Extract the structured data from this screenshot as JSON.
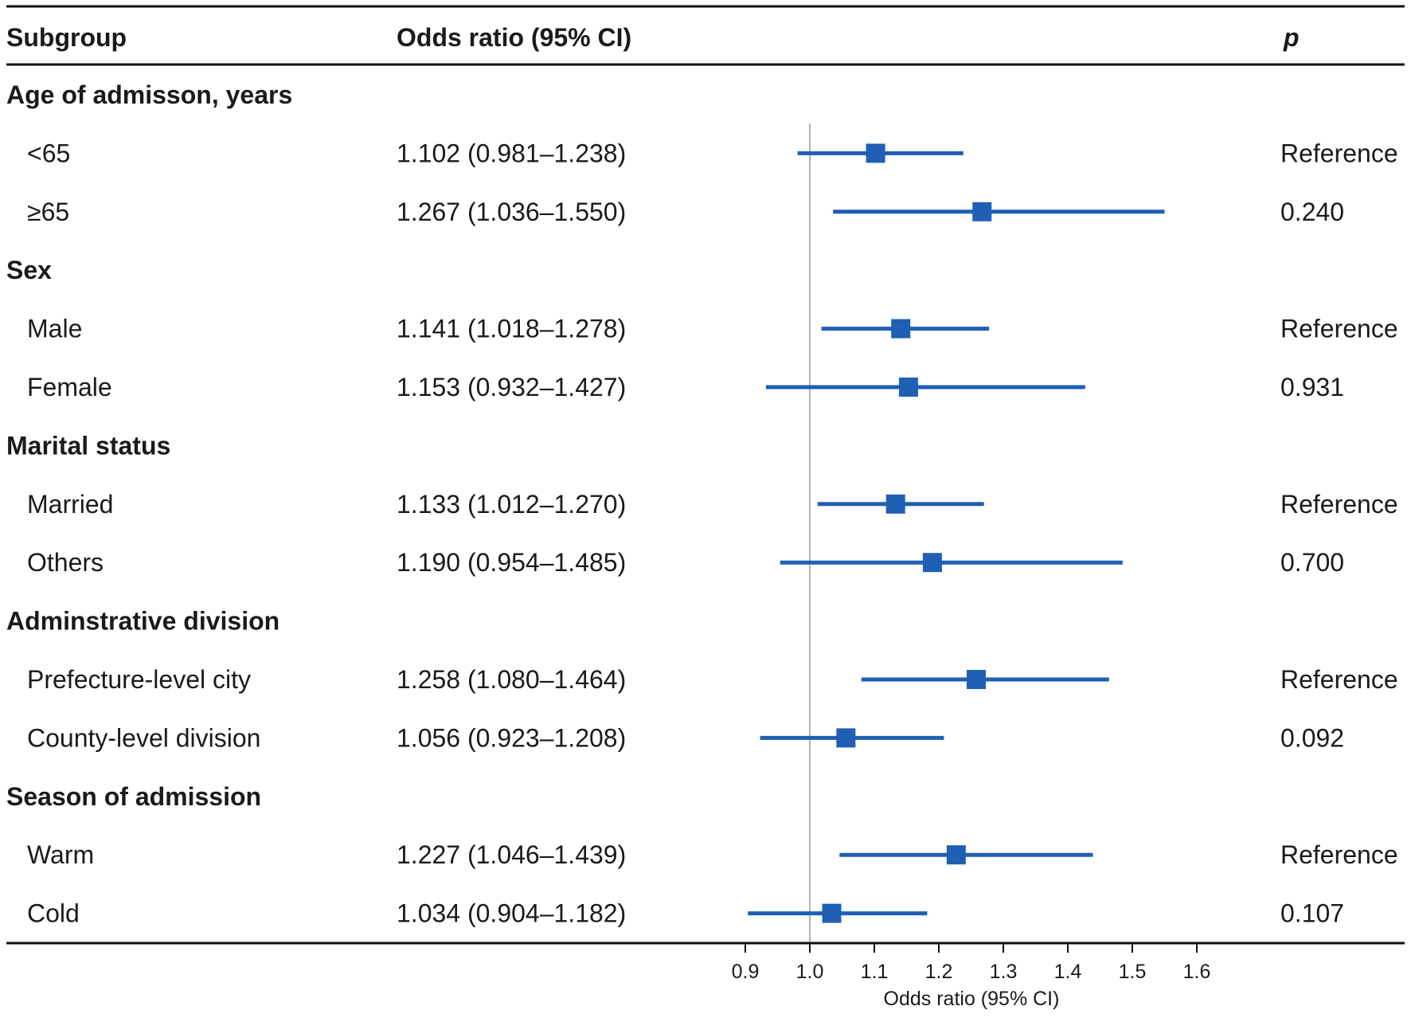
{
  "chart_data": {
    "type": "forest",
    "title": "",
    "columns": {
      "subgroup": "Subgroup",
      "estimate": "Odds ratio (95% CI)",
      "p": "p"
    },
    "xlabel": "Odds ratio (95% CI)",
    "xlim": [
      0.9,
      1.6
    ],
    "xticks": [
      "0.9",
      "1.0",
      "1.1",
      "1.2",
      "1.3",
      "1.4",
      "1.5",
      "1.6"
    ],
    "reference_line": 1.0,
    "colors": {
      "marker": "#1f5fb4",
      "rule": "#111111",
      "refline": "#999999"
    },
    "groups": [
      {
        "label": "Age of admisson, years",
        "rows": [
          {
            "label": "<65",
            "or": 1.102,
            "lo": 0.981,
            "hi": 1.238,
            "text": "1.102 (0.981–1.238)",
            "p": "Reference"
          },
          {
            "label": "≥65",
            "or": 1.267,
            "lo": 1.036,
            "hi": 1.55,
            "text": "1.267 (1.036–1.550)",
            "p": "0.240"
          }
        ]
      },
      {
        "label": "Sex",
        "rows": [
          {
            "label": "Male",
            "or": 1.141,
            "lo": 1.018,
            "hi": 1.278,
            "text": "1.141 (1.018–1.278)",
            "p": "Reference"
          },
          {
            "label": "Female",
            "or": 1.153,
            "lo": 0.932,
            "hi": 1.427,
            "text": "1.153 (0.932–1.427)",
            "p": "0.931"
          }
        ]
      },
      {
        "label": "Marital status",
        "rows": [
          {
            "label": "Married",
            "or": 1.133,
            "lo": 1.012,
            "hi": 1.27,
            "text": "1.133 (1.012–1.270)",
            "p": "Reference"
          },
          {
            "label": "Others",
            "or": 1.19,
            "lo": 0.954,
            "hi": 1.485,
            "text": "1.190 (0.954–1.485)",
            "p": "0.700"
          }
        ]
      },
      {
        "label": "Adminstrative division",
        "rows": [
          {
            "label": "Prefecture-level city",
            "or": 1.258,
            "lo": 1.08,
            "hi": 1.464,
            "text": "1.258 (1.080–1.464)",
            "p": "Reference"
          },
          {
            "label": "County-level division",
            "or": 1.056,
            "lo": 0.923,
            "hi": 1.208,
            "text": "1.056 (0.923–1.208)",
            "p": "0.092"
          }
        ]
      },
      {
        "label": "Season of admission",
        "rows": [
          {
            "label": "Warm",
            "or": 1.227,
            "lo": 1.046,
            "hi": 1.439,
            "text": "1.227 (1.046–1.439)",
            "p": "Reference"
          },
          {
            "label": "Cold",
            "or": 1.034,
            "lo": 0.904,
            "hi": 1.182,
            "text": "1.034 (0.904–1.182)",
            "p": "0.107"
          }
        ]
      }
    ]
  }
}
